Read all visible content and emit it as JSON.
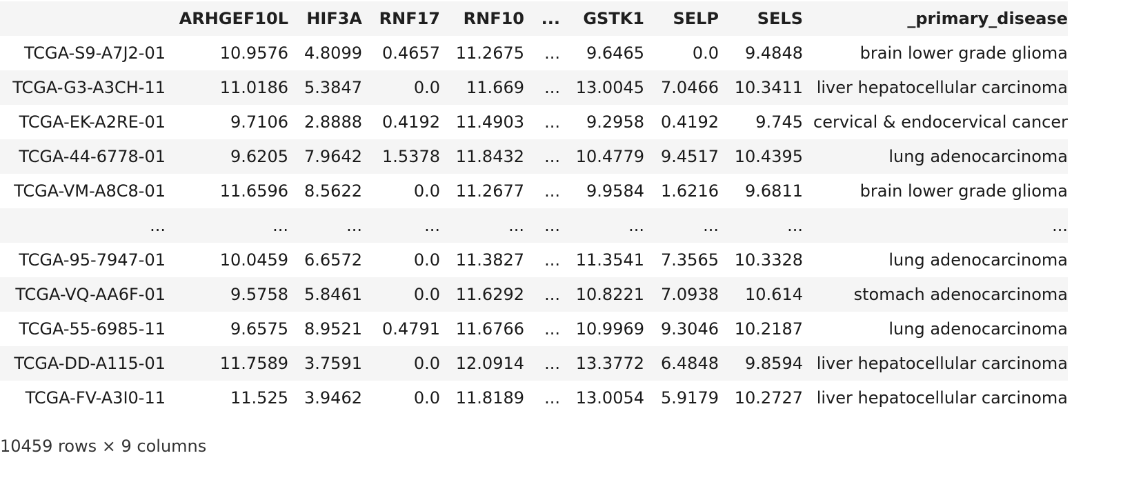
{
  "table": {
    "columns": [
      "",
      "ARHGEF10L",
      "HIF3A",
      "RNF17",
      "RNF10",
      "...",
      "GSTK1",
      "SELP",
      "SELS",
      "_primary_disease"
    ],
    "rows": [
      {
        "index": "TCGA-S9-A7J2-01",
        "cells": [
          "10.9576",
          "4.8099",
          "0.4657",
          "11.2675",
          "...",
          "9.6465",
          "0.0",
          "9.4848",
          "brain lower grade glioma"
        ]
      },
      {
        "index": "TCGA-G3-A3CH-11",
        "cells": [
          "11.0186",
          "5.3847",
          "0.0",
          "11.669",
          "...",
          "13.0045",
          "7.0466",
          "10.3411",
          "liver hepatocellular carcinoma"
        ]
      },
      {
        "index": "TCGA-EK-A2RE-01",
        "cells": [
          "9.7106",
          "2.8888",
          "0.4192",
          "11.4903",
          "...",
          "9.2958",
          "0.4192",
          "9.745",
          "cervical & endocervical cancer"
        ]
      },
      {
        "index": "TCGA-44-6778-01",
        "cells": [
          "9.6205",
          "7.9642",
          "1.5378",
          "11.8432",
          "...",
          "10.4779",
          "9.4517",
          "10.4395",
          "lung adenocarcinoma"
        ]
      },
      {
        "index": "TCGA-VM-A8C8-01",
        "cells": [
          "11.6596",
          "8.5622",
          "0.0",
          "11.2677",
          "...",
          "9.9584",
          "1.6216",
          "9.6811",
          "brain lower grade glioma"
        ]
      },
      {
        "index": "...",
        "cells": [
          "...",
          "...",
          "...",
          "...",
          "...",
          "...",
          "...",
          "...",
          "..."
        ]
      },
      {
        "index": "TCGA-95-7947-01",
        "cells": [
          "10.0459",
          "6.6572",
          "0.0",
          "11.3827",
          "...",
          "11.3541",
          "7.3565",
          "10.3328",
          "lung adenocarcinoma"
        ]
      },
      {
        "index": "TCGA-VQ-AA6F-01",
        "cells": [
          "9.5758",
          "5.8461",
          "0.0",
          "11.6292",
          "...",
          "10.8221",
          "7.0938",
          "10.614",
          "stomach adenocarcinoma"
        ]
      },
      {
        "index": "TCGA-55-6985-11",
        "cells": [
          "9.6575",
          "8.9521",
          "0.4791",
          "11.6766",
          "...",
          "10.9969",
          "9.3046",
          "10.2187",
          "lung adenocarcinoma"
        ]
      },
      {
        "index": "TCGA-DD-A115-01",
        "cells": [
          "11.7589",
          "3.7591",
          "0.0",
          "12.0914",
          "...",
          "13.3772",
          "6.4848",
          "9.8594",
          "liver hepatocellular carcinoma"
        ]
      },
      {
        "index": "TCGA-FV-A3I0-11",
        "cells": [
          "11.525",
          "3.9462",
          "0.0",
          "11.8189",
          "...",
          "13.0054",
          "5.9179",
          "10.2727",
          "liver hepatocellular carcinoma"
        ]
      }
    ]
  },
  "summary": "10459 rows × 9 columns"
}
